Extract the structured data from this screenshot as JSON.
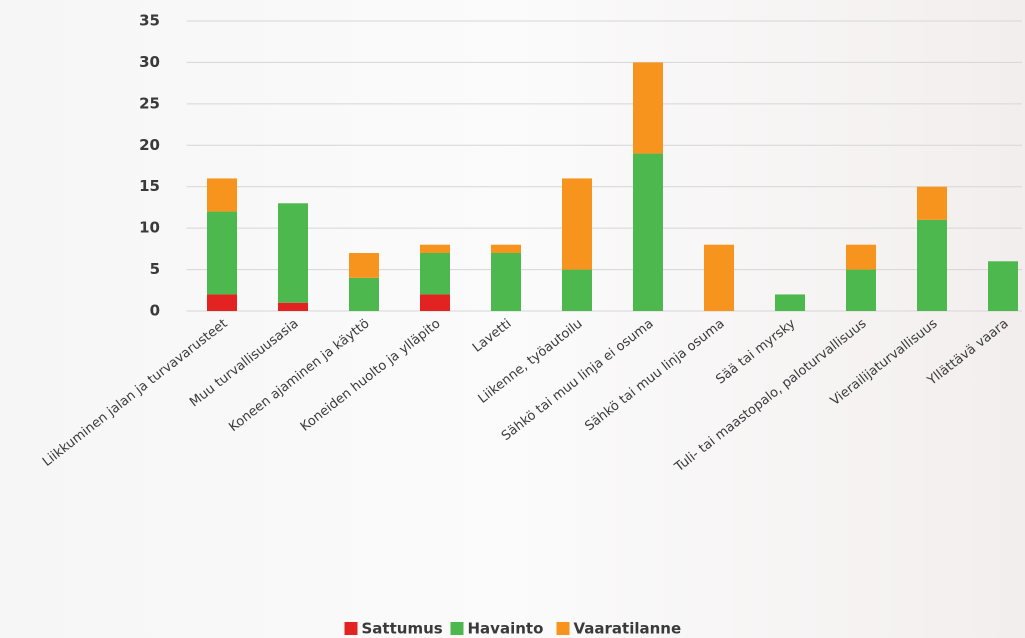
{
  "chart_data": {
    "type": "stacked-bar",
    "categories": [
      "Liikkuminen jalan ja turvavarusteet",
      "Muu turvallisuusasia",
      "Koneen ajaminen ja käyttö",
      "Koneiden huolto ja ylläpito",
      "Lavetti",
      "Liikenne, työautoilu",
      "Sähkö tai muu linja ei osuma",
      "Sähkö tai muu linja osuma",
      "Sää tai myrsky",
      "Tuli- tai maastopalo, paloturvallisuus",
      "Vierailijaturvallisuus",
      "Yllättävä vaara"
    ],
    "series": [
      {
        "name": "Sattumus",
        "color": "#e32322",
        "values": [
          2,
          1,
          0,
          2,
          0,
          0,
          0,
          0,
          0,
          0,
          0,
          0
        ]
      },
      {
        "name": "Havainto",
        "color": "#4db84e",
        "values": [
          10,
          12,
          4,
          5,
          7,
          5,
          19,
          0,
          2,
          5,
          11,
          6
        ]
      },
      {
        "name": "Vaaratilanne",
        "color": "#f7941e",
        "values": [
          4,
          0,
          3,
          1,
          1,
          11,
          11,
          8,
          0,
          3,
          4,
          0
        ]
      }
    ],
    "ylim": [
      0,
      35
    ],
    "yticks": [
      0,
      5,
      10,
      15,
      20,
      25,
      30,
      35
    ],
    "grid": true,
    "legend": "bottom"
  }
}
